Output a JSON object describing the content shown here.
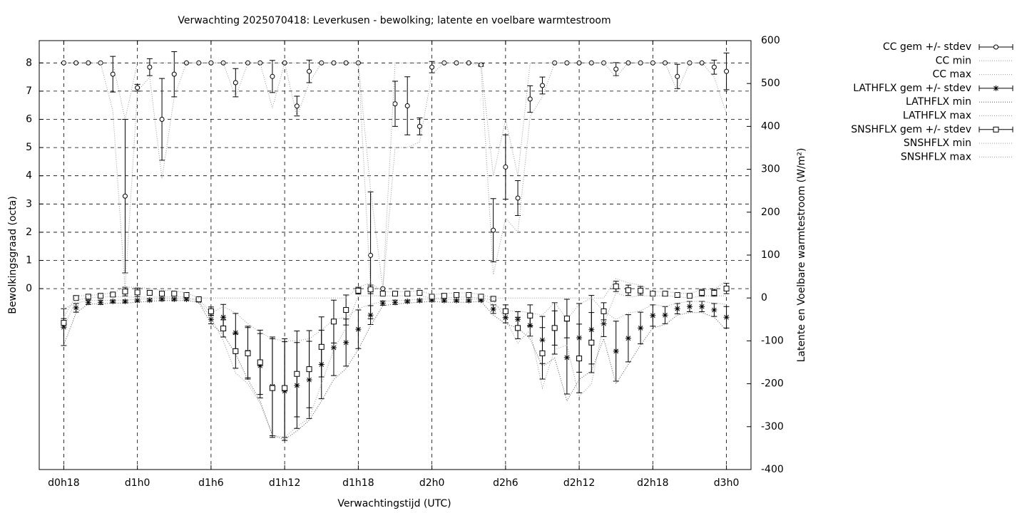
{
  "chart_data": {
    "type": "errorbar",
    "title": "Verwachting 2025070418: Leverkusen - bewolking; latente en voelbare warmtestroom",
    "xlabel": "Verwachtingstijd (UTC)",
    "ylabel": "Bewolkingsgraad (octa)",
    "y2label": "Latente en Voelbare warmtestroom (W/m²)",
    "grid": true,
    "legend": "outside-right",
    "x": [
      18,
      19,
      20,
      21,
      22,
      23,
      24,
      25,
      26,
      27,
      28,
      29,
      30,
      31,
      32,
      33,
      34,
      35,
      36,
      37,
      38,
      39,
      40,
      41,
      42,
      43,
      44,
      45,
      46,
      47,
      48,
      49,
      50,
      51,
      52,
      53,
      54,
      55,
      56,
      57,
      58,
      59,
      60,
      61,
      62,
      63,
      64,
      65,
      66,
      67,
      68,
      69,
      70,
      71,
      72
    ],
    "xlim": [
      16,
      74
    ],
    "xticks": [
      {
        "value": 18,
        "label": "d0h18"
      },
      {
        "value": 24,
        "label": "d1h0"
      },
      {
        "value": 30,
        "label": "d1h6"
      },
      {
        "value": 36,
        "label": "d1h12"
      },
      {
        "value": 42,
        "label": "d1h18"
      },
      {
        "value": 48,
        "label": "d2h0"
      },
      {
        "value": 54,
        "label": "d2h6"
      },
      {
        "value": 60,
        "label": "d2h12"
      },
      {
        "value": 66,
        "label": "d2h18"
      },
      {
        "value": 72,
        "label": "d3h0"
      }
    ],
    "ylim": [
      -6.41,
      8.79
    ],
    "yticks": [
      0,
      1,
      2,
      3,
      4,
      5,
      6,
      7,
      8
    ],
    "y2lim": [
      -400,
      600
    ],
    "y2ticks": [
      -400,
      -300,
      -200,
      -100,
      0,
      100,
      200,
      300,
      400,
      500,
      600
    ],
    "series": [
      {
        "name": "CC gem +/- stdev",
        "style": "errorbar",
        "marker": "circle",
        "color": "#000000",
        "values": [
          8,
          8,
          8,
          8,
          7.6,
          3.28,
          7.12,
          7.85,
          6.0,
          7.6,
          8,
          8,
          8,
          8,
          7.3,
          8,
          8,
          7.52,
          8,
          6.47,
          7.7,
          8,
          8,
          8,
          8,
          1.18,
          0,
          6.55,
          6.48,
          5.75,
          7.85,
          8,
          8,
          8,
          7.93,
          2.07,
          4.31,
          3.21,
          6.72,
          7.2,
          8,
          8,
          8,
          8,
          8,
          7.78,
          8,
          8,
          8,
          8,
          7.52,
          8,
          8,
          7.85,
          7.7
        ],
        "errors": [
          0,
          0,
          0,
          0,
          0.63,
          2.72,
          0.12,
          0.3,
          1.45,
          0.8,
          0,
          0,
          0,
          0,
          0.5,
          0,
          0,
          0.57,
          0,
          0.35,
          0.4,
          0,
          0,
          0,
          0,
          2.25,
          0,
          0.8,
          1.03,
          0.3,
          0.2,
          0,
          0,
          0,
          0.05,
          1.12,
          1.14,
          0.62,
          0.47,
          0.3,
          0,
          0,
          0,
          0,
          0,
          0.23,
          0,
          0,
          0,
          0,
          0.43,
          0,
          0,
          0.25,
          0.65
        ]
      },
      {
        "name": "CC min",
        "style": "dotted",
        "color": "#999999",
        "values": [
          8,
          8,
          8,
          8,
          6.3,
          0,
          7,
          7.5,
          3.9,
          6.8,
          8,
          8,
          8,
          8,
          6.8,
          8,
          8,
          6.4,
          8,
          6.1,
          7.3,
          8,
          8,
          8,
          8,
          0,
          0,
          5,
          5,
          5.2,
          7.6,
          8,
          8,
          8,
          7.9,
          0.5,
          2.5,
          2,
          6.1,
          6.8,
          8,
          8,
          8,
          8,
          8,
          7.5,
          8,
          8,
          8,
          8,
          7,
          8,
          8,
          7.5,
          6.2
        ]
      },
      {
        "name": "CC max",
        "style": "dotted",
        "color": "#999999",
        "values": [
          8,
          8,
          8,
          8,
          8,
          6,
          8,
          8,
          8,
          8,
          8,
          8,
          8,
          8,
          8,
          8,
          8,
          8,
          8,
          8,
          8,
          8,
          8,
          8,
          8,
          3.5,
          0,
          8,
          8,
          8,
          8,
          8,
          8,
          8,
          8,
          4,
          6,
          4,
          8,
          8,
          8,
          8,
          8,
          8,
          8,
          8,
          8,
          8,
          8,
          8,
          8,
          8,
          8,
          8,
          8
        ]
      },
      {
        "name": "LATHFLX gem +/- stdev",
        "style": "errorbar",
        "marker": "asterisk",
        "color": "#000000",
        "axis": "y2",
        "values": [
          -68,
          -23,
          -10,
          -10,
          -8,
          -8,
          -6,
          -5,
          -3,
          -3,
          -3,
          -6,
          -50,
          -45,
          -81,
          -126,
          -158,
          -206,
          -217,
          -204,
          -191,
          -155,
          -116,
          -104,
          -73,
          -40,
          -12,
          -10,
          -8,
          -6,
          -5,
          -6,
          -6,
          -6,
          -5,
          -26,
          -46,
          -50,
          -64,
          -98,
          -71,
          -139,
          -93,
          -74,
          -60,
          -124,
          -94,
          -70,
          -41,
          -40,
          -25,
          -20,
          -20,
          -28,
          -45
        ],
        "errors": [
          43,
          10,
          5,
          5,
          3,
          3,
          3,
          3,
          3,
          3,
          3,
          3,
          10,
          30,
          45,
          60,
          75,
          115,
          115,
          100,
          90,
          80,
          65,
          55,
          45,
          22,
          5,
          5,
          3,
          3,
          3,
          3,
          3,
          3,
          3,
          10,
          12,
          18,
          25,
          55,
          60,
          85,
          80,
          80,
          30,
          70,
          55,
          37,
          25,
          20,
          12,
          12,
          12,
          15,
          25
        ]
      },
      {
        "name": "LATHFLX min",
        "style": "dotted",
        "color": "#555555",
        "axis": "y2",
        "values": [
          -110,
          -35,
          -14,
          -14,
          -12,
          -12,
          -10,
          -8,
          -6,
          -6,
          -6,
          -10,
          -60,
          -85,
          -130,
          -190,
          -240,
          -320,
          -330,
          -310,
          -285,
          -240,
          -190,
          -165,
          -120,
          -65,
          -18,
          -14,
          -12,
          -10,
          -8,
          -10,
          -10,
          -10,
          -8,
          -40,
          -60,
          -70,
          -95,
          -160,
          -140,
          -240,
          -190,
          -170,
          -95,
          -200,
          -155,
          -110,
          -70,
          -62,
          -40,
          -34,
          -34,
          -45,
          -75
        ]
      },
      {
        "name": "LATHFLX max",
        "style": "dotted",
        "color": "#999999",
        "axis": "y2",
        "values": [
          -25,
          -12,
          -6,
          -6,
          -5,
          -5,
          -3,
          -2,
          -1,
          -1,
          -1,
          -3,
          -35,
          -20,
          -35,
          -60,
          -80,
          -95,
          -100,
          -100,
          -95,
          -75,
          -50,
          -45,
          -25,
          -15,
          -8,
          -6,
          -5,
          -3,
          -2,
          -3,
          -3,
          -3,
          -2,
          -15,
          -30,
          -30,
          -35,
          -40,
          -10,
          -50,
          -15,
          0,
          -30,
          -50,
          -35,
          -30,
          -15,
          -20,
          -12,
          -8,
          -8,
          -12,
          -15
        ]
      },
      {
        "name": "SNSHFLX gem +/- stdev",
        "style": "errorbar",
        "marker": "square",
        "color": "#000000",
        "axis": "y2",
        "values": [
          -58,
          0,
          3,
          5,
          8,
          15,
          13,
          12,
          10,
          10,
          7,
          -3,
          -31,
          -71,
          -124,
          -129,
          -150,
          -210,
          -210,
          -177,
          -166,
          -114,
          -55,
          -28,
          17,
          20,
          10,
          10,
          10,
          12,
          3,
          5,
          7,
          7,
          3,
          -2,
          -31,
          -70,
          -41,
          -129,
          -70,
          -48,
          -141,
          -104,
          -31,
          27,
          18,
          17,
          10,
          10,
          7,
          5,
          12,
          12,
          22
        ],
        "errors": [
          10,
          3,
          3,
          3,
          3,
          10,
          10,
          5,
          5,
          5,
          5,
          3,
          10,
          20,
          40,
          60,
          75,
          115,
          115,
          100,
          90,
          70,
          50,
          35,
          8,
          10,
          5,
          5,
          5,
          5,
          5,
          5,
          5,
          5,
          3,
          3,
          15,
          25,
          25,
          60,
          40,
          45,
          80,
          70,
          20,
          12,
          12,
          10,
          5,
          5,
          5,
          5,
          8,
          8,
          12
        ]
      },
      {
        "name": "SNSHFLX min",
        "style": "dotted",
        "color": "#999999",
        "axis": "y2",
        "values": [
          -70,
          -5,
          0,
          2,
          3,
          2,
          2,
          2,
          2,
          3,
          2,
          -8,
          -45,
          -100,
          -175,
          -200,
          -245,
          -320,
          -325,
          -300,
          -280,
          -200,
          -120,
          -70,
          5,
          5,
          5,
          5,
          5,
          5,
          0,
          0,
          2,
          2,
          0,
          -5,
          -50,
          -105,
          -75,
          -210,
          -120,
          -110,
          -230,
          -200,
          -60,
          12,
          2,
          5,
          5,
          5,
          3,
          0,
          5,
          5,
          5
        ]
      },
      {
        "name": "SNSHFLX max",
        "style": "dotted",
        "color": "#999999",
        "axis": "y2",
        "values": [
          -45,
          5,
          6,
          8,
          12,
          25,
          25,
          22,
          18,
          17,
          12,
          0,
          0,
          0,
          0,
          0,
          0,
          0,
          0,
          0,
          0,
          0,
          0,
          0,
          25,
          35,
          15,
          15,
          15,
          17,
          8,
          10,
          12,
          12,
          8,
          0,
          0,
          0,
          0,
          0,
          0,
          0,
          0,
          0,
          0,
          45,
          35,
          30,
          15,
          15,
          12,
          10,
          20,
          20,
          40
        ]
      }
    ]
  }
}
